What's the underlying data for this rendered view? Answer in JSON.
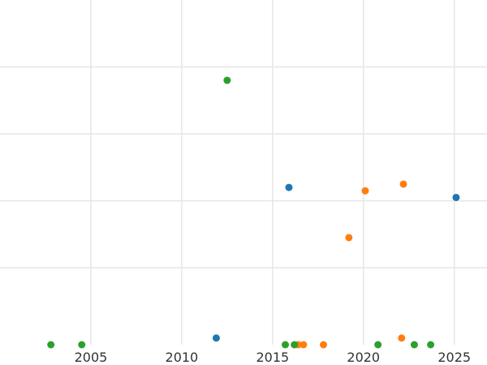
{
  "chart_data": {
    "type": "scatter",
    "title": "",
    "xlabel": "",
    "ylabel": "",
    "xlim": [
      2000.0,
      2026.8
    ],
    "ylim": [
      -0.3,
      10.0
    ],
    "x_ticks": [
      2005,
      2010,
      2015,
      2020,
      2025
    ],
    "y_gridlines": [
      2,
      4,
      6,
      8
    ],
    "grid": true,
    "legend": "none",
    "series": [
      {
        "color": "#1f77b4",
        "x": [
          2015.9,
          2011.9,
          2025.1
        ],
        "y": [
          4.4,
          -0.1,
          4.1
        ]
      },
      {
        "color": "#ff7f0e",
        "x": [
          2020.1,
          2022.2,
          2019.2,
          2016.4,
          2016.7,
          2017.8,
          2022.1
        ],
        "y": [
          4.3,
          4.5,
          2.9,
          -0.3,
          -0.3,
          -0.3,
          -0.1
        ]
      },
      {
        "color": "#2ca02c",
        "x": [
          2012.5,
          2002.8,
          2004.5,
          2015.7,
          2016.2,
          2020.8,
          2022.8,
          2023.7
        ],
        "y": [
          7.6,
          -0.3,
          -0.3,
          -0.3,
          -0.3,
          -0.3,
          -0.3,
          -0.3
        ]
      }
    ]
  }
}
